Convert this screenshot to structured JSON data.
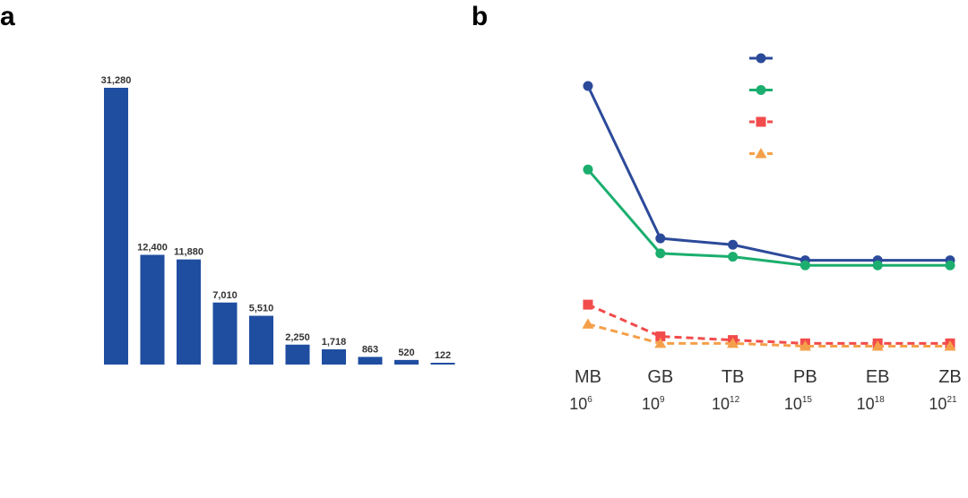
{
  "panels": {
    "a": "a",
    "b": "b"
  },
  "colors": {
    "bar": "#1f4ea1",
    "series": [
      "#2c4a9a",
      "#1bae6e",
      "#f24b4b",
      "#f4a04a"
    ]
  },
  "chart_data": [
    {
      "type": "bar",
      "categories": [
        "",
        "",
        "",
        "",
        "",
        "",
        "",
        "",
        "",
        ""
      ],
      "values": [
        31280,
        12400,
        11880,
        7010,
        5510,
        2250,
        1718,
        863,
        520,
        122
      ],
      "value_labels": [
        "31,280",
        "12,400",
        "11,880",
        "7,010",
        "5,510",
        "2,250",
        "1,718",
        "863",
        "520",
        "122"
      ],
      "title": "",
      "xlabel": "",
      "ylabel": "",
      "ylim": [
        0,
        31280
      ]
    },
    {
      "type": "line",
      "x": [
        "MB",
        "GB",
        "TB",
        "PB",
        "EB",
        "ZB"
      ],
      "x_powers": [
        {
          "base": "10",
          "exp": "6"
        },
        {
          "base": "10",
          "exp": "9"
        },
        {
          "base": "10",
          "exp": "12"
        },
        {
          "base": "10",
          "exp": "15"
        },
        {
          "base": "10",
          "exp": "18"
        },
        {
          "base": "10",
          "exp": "21"
        }
      ],
      "series": [
        {
          "marker": "circle",
          "dash": false,
          "values": [
            100,
            45.3,
            43.0,
            37.4,
            37.4,
            37.4
          ]
        },
        {
          "marker": "circle",
          "dash": false,
          "values": [
            70.0,
            39.9,
            38.7,
            35.6,
            35.6,
            35.6
          ]
        },
        {
          "marker": "square",
          "dash": true,
          "values": [
            21.5,
            10.1,
            8.8,
            7.6,
            7.6,
            7.6
          ]
        },
        {
          "marker": "triangle",
          "dash": true,
          "values": [
            14.5,
            7.6,
            7.6,
            6.6,
            6.6,
            6.6
          ]
        }
      ],
      "legend": "top-right",
      "title": "",
      "xlabel": "",
      "ylabel": "",
      "ylim": [
        0,
        100
      ]
    }
  ]
}
